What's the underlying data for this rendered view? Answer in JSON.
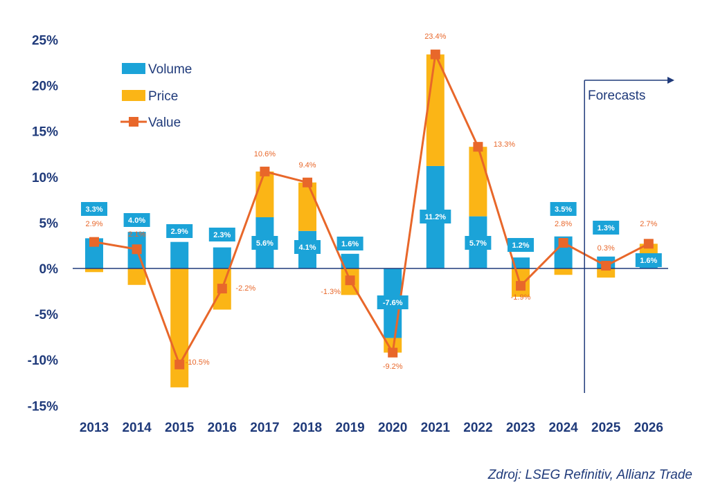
{
  "chart_data": {
    "type": "bar",
    "stacked": true,
    "categories": [
      "2013",
      "2014",
      "2015",
      "2016",
      "2017",
      "2018",
      "2019",
      "2020",
      "2021",
      "2022",
      "2023",
      "2024",
      "2025",
      "2026"
    ],
    "series": [
      {
        "name": "Volume",
        "type": "bar",
        "color": "#1ba3d8",
        "values": [
          3.3,
          4.0,
          2.9,
          2.3,
          5.6,
          4.1,
          1.6,
          -7.6,
          11.2,
          5.7,
          1.2,
          3.5,
          1.3,
          1.6
        ],
        "labels": [
          "3.3%",
          "4.0%",
          "2.9%",
          "2.3%",
          "5.6%",
          "4.1%",
          "1.6%",
          "-7.6%",
          "11.2%",
          "5.7%",
          "1.2%",
          "3.5%",
          "1.3%",
          "1.6%"
        ]
      },
      {
        "name": "Price",
        "type": "bar",
        "color": "#fbb516",
        "values": [
          -0.4,
          -1.8,
          -13.0,
          -4.5,
          5.0,
          5.3,
          -2.9,
          -1.6,
          12.2,
          7.6,
          -3.1,
          -0.7,
          -1.0,
          1.1
        ]
      },
      {
        "name": "Value",
        "type": "line",
        "color": "#e8672a",
        "values": [
          2.9,
          2.1,
          -10.5,
          -2.2,
          10.6,
          9.4,
          -1.3,
          -9.2,
          23.4,
          13.3,
          -1.9,
          2.8,
          0.3,
          2.7
        ],
        "labels": [
          "2.9%",
          "2.1%",
          "-10.5%",
          "-2.2%",
          "10.6%",
          "9.4%",
          "-1.3%",
          "-9.2%",
          "23.4%",
          "13.3%",
          "-1.9%",
          "2.8%",
          "0.3%",
          "2.7%"
        ]
      }
    ],
    "yticks": [
      25,
      20,
      15,
      10,
      5,
      0,
      -5,
      -10,
      -15
    ],
    "ytick_labels": [
      "25%",
      "20%",
      "15%",
      "10%",
      "5%",
      "0%",
      "-5%",
      "-10%",
      "-15%"
    ],
    "ylim": [
      -15,
      25
    ],
    "forecast_label": "Forecasts",
    "forecast_from_index": 12,
    "legend_position": "top-left"
  },
  "source": "Zdroj: LSEG Refinitiv, Allianz Trade"
}
